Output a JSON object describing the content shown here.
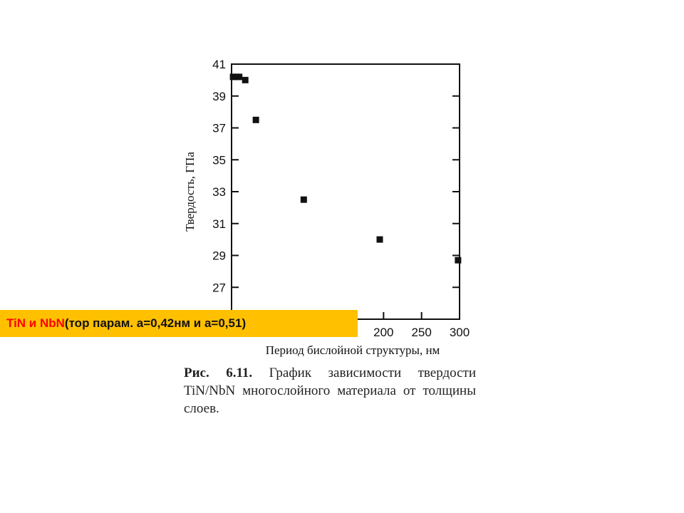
{
  "chart_data": {
    "type": "scatter",
    "title": "",
    "xlabel": "Период бислойной структуры, нм",
    "ylabel": "Твердость, ГПа",
    "xlim": [
      0,
      300
    ],
    "ylim": [
      25,
      41
    ],
    "x_ticks_visible": [
      "200",
      "250",
      "300"
    ],
    "y_ticks": [
      "41",
      "39",
      "37",
      "35",
      "33",
      "31",
      "29",
      "27"
    ],
    "points": [
      {
        "x": 2,
        "y": 40.2
      },
      {
        "x": 6,
        "y": 40.2
      },
      {
        "x": 10,
        "y": 40.2
      },
      {
        "x": 18,
        "y": 40.0
      },
      {
        "x": 32,
        "y": 37.5
      },
      {
        "x": 95,
        "y": 32.5
      },
      {
        "x": 195,
        "y": 30.0
      },
      {
        "x": 298,
        "y": 28.7
      }
    ],
    "grid": false,
    "marker": "filled-square"
  },
  "banner": {
    "materials": "TiN и NbN",
    "params": " (тор парам. а=0,42нм и а=0,51)",
    "bg_color": "#ffc000",
    "highlight_color": "#ff0000"
  },
  "caption": {
    "label": "Рис. 6.11.",
    "text": " График зависимости твердости TiN/NbN многослойного материала от толщины слоев."
  }
}
